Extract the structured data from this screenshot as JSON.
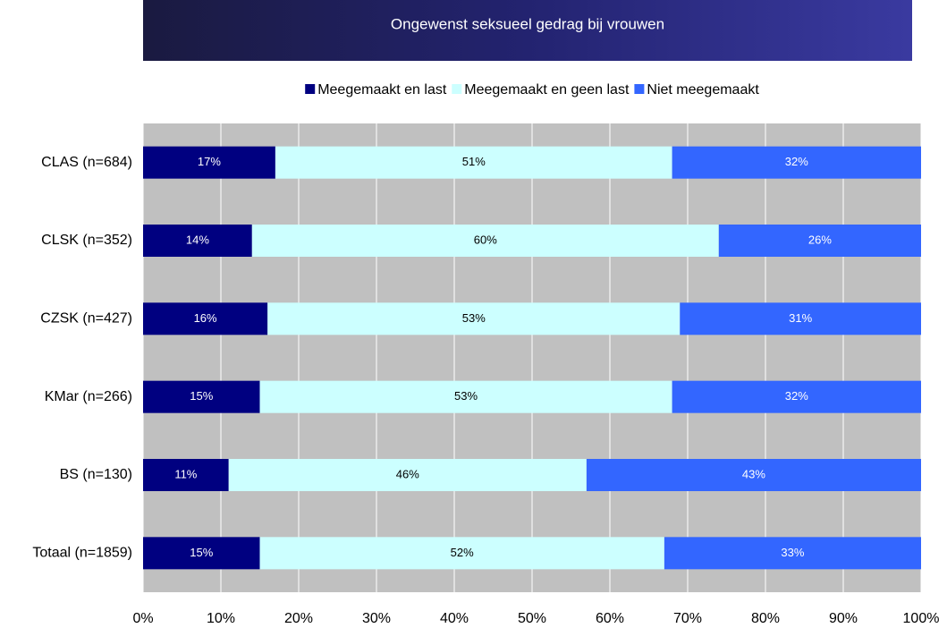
{
  "chart_data": {
    "type": "stacked_barh",
    "title": "Ongewenst seksueel gedrag bij vrouwen",
    "categories": [
      "CLAS (n=684)",
      "CLSK (n=352)",
      "CZSK (n=427)",
      "KMar (n=266)",
      "BS (n=130)",
      "Totaal (n=1859)"
    ],
    "series": [
      {
        "name": "Meegemaakt en last",
        "color": "#000080",
        "label_color": "#ffffff",
        "values": [
          17,
          14,
          16,
          15,
          11,
          15
        ],
        "value_labels": [
          "17%",
          "14%",
          "16%",
          "15%",
          "11%",
          "15%"
        ]
      },
      {
        "name": "Meegemaakt en geen last",
        "color": "#ccffff",
        "label_color": "#000000",
        "values": [
          51,
          60,
          53,
          53,
          46,
          52
        ],
        "value_labels": [
          "51%",
          "60%",
          "53%",
          "53%",
          "46%",
          "52%"
        ]
      },
      {
        "name": "Niet meegemaakt",
        "color": "#3366ff",
        "label_color": "#ffffff",
        "values": [
          32,
          26,
          31,
          32,
          43,
          33
        ],
        "value_labels": [
          "32%",
          "26%",
          "31%",
          "32%",
          "43%",
          "33%"
        ]
      }
    ],
    "xlim": [
      0,
      100
    ],
    "xticks": [
      {
        "value": 0,
        "label": "0%"
      },
      {
        "value": 10,
        "label": "10%"
      },
      {
        "value": 20,
        "label": "20%"
      },
      {
        "value": 30,
        "label": "30%"
      },
      {
        "value": 40,
        "label": "40%"
      },
      {
        "value": 50,
        "label": "50%"
      },
      {
        "value": 60,
        "label": "60%"
      },
      {
        "value": 70,
        "label": "70%"
      },
      {
        "value": 80,
        "label": "80%"
      },
      {
        "value": 90,
        "label": "90%"
      },
      {
        "value": 100,
        "label": "100%"
      }
    ],
    "grid": true,
    "legend": "top"
  }
}
